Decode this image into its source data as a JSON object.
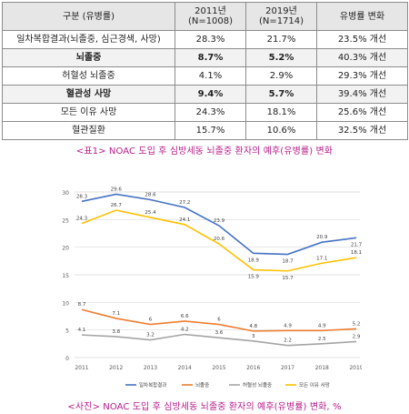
{
  "table": {
    "headers": [
      "구분 (유병률)",
      "2011년\n(N=1008)",
      "2019년\n(N=1714)",
      "유병률 변화"
    ],
    "rows": [
      {
        "label": "일차복합결과(뇌졸중, 심근경색, 사망)",
        "y2011": "28.3%",
        "y2019": "21.7%",
        "change": "23.5% 개선",
        "highlight": false
      },
      {
        "label": "뇌졸중",
        "y2011": "8.7%",
        "y2019": "5.2%",
        "change": "40.3% 개선",
        "highlight": true
      },
      {
        "label": "허혈성 뇌졸중",
        "y2011": "4.1%",
        "y2019": "2.9%",
        "change": "29.3% 개선",
        "highlight": false
      },
      {
        "label": "혈관성 사망",
        "y2011": "9.4%",
        "y2019": "5.7%",
        "change": "39.4% 개선",
        "highlight": true
      },
      {
        "label": "모든 이유 사망",
        "y2011": "24.3%",
        "y2019": "18.1%",
        "change": "25.6% 개선",
        "highlight": false
      },
      {
        "label": "혈관질환",
        "y2011": "15.7%",
        "y2019": "10.6%",
        "change": "32.5% 개선",
        "highlight": false
      }
    ]
  },
  "caption_table": "<표1> NOAC 도입 후 심방세동 뇌졸중 환자의 예후(유병률) 변화",
  "caption_chart": "<사진> NOAC 도입 후 심방세동 뇌졸중 환자의 예후(유병률) 변화, %",
  "chart_data": {
    "type": "line",
    "x": [
      "2011",
      "2012",
      "2013",
      "2014",
      "2015",
      "2016",
      "2017",
      "2018",
      "2019"
    ],
    "ylim": [
      0,
      30
    ],
    "yticks": [
      "0",
      "5",
      "10",
      "15",
      "20",
      "25",
      "30"
    ],
    "grid": true,
    "legend_position": "bottom",
    "series": [
      {
        "name": "일차복합결과",
        "color": "#4472c4",
        "values": [
          28.3,
          29.6,
          28.6,
          27.2,
          23.9,
          18.9,
          18.7,
          20.9,
          21.7
        ],
        "labels": [
          "28.3",
          "29.6",
          "28.6",
          "27.2",
          "23.9",
          "18.9",
          "18.7",
          "20.9",
          "21.7"
        ]
      },
      {
        "name": "뇌졸중",
        "color": "#ed7d31",
        "values": [
          8.7,
          7.1,
          6.0,
          6.6,
          6.0,
          4.8,
          4.9,
          4.9,
          5.2
        ],
        "labels": [
          "8.7",
          "7.1",
          "6",
          "6.6",
          "6",
          "4.8",
          "4.9",
          "4.9",
          "5.2"
        ]
      },
      {
        "name": "허혈성 뇌졸중",
        "color": "#a5a5a5",
        "values": [
          4.1,
          3.8,
          3.2,
          4.2,
          3.6,
          3.0,
          2.2,
          2.5,
          2.9
        ],
        "labels": [
          "4.1",
          "3.8",
          "3.2",
          "4.2",
          "3.6",
          "3",
          "2.2",
          "2.5",
          "2.9"
        ]
      },
      {
        "name": "모든 이유 사망",
        "color": "#ffc000",
        "values": [
          24.3,
          26.7,
          25.4,
          24.1,
          20.6,
          15.9,
          15.7,
          17.1,
          18.1
        ],
        "labels": [
          "24.3",
          "26.7",
          "25.4",
          "24.1",
          "20.6",
          "15.9",
          "15.7",
          "17.1",
          "18.1"
        ]
      }
    ]
  }
}
